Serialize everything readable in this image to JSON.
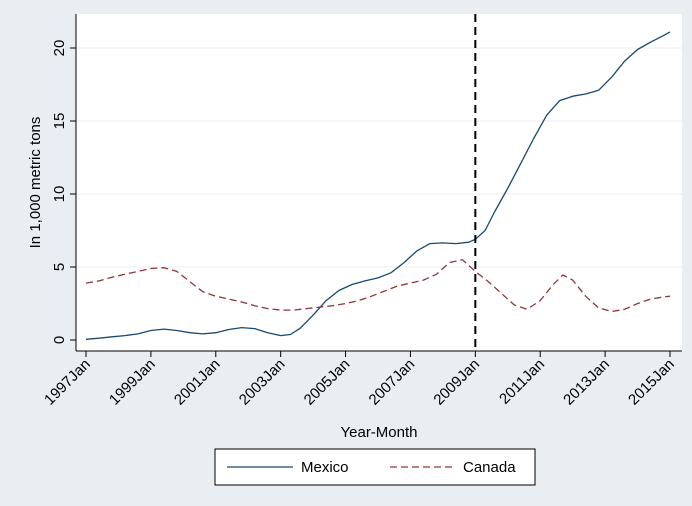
{
  "chart_data": {
    "type": "line",
    "title": "",
    "xlabel": "Year-Month",
    "ylabel": "In 1,000 metric tons",
    "xlim": [
      1997.0,
      2015.1
    ],
    "ylim": [
      0,
      21.5
    ],
    "xticks": [
      {
        "label": "1997Jan",
        "value": 1997.0
      },
      {
        "label": "1999Jan",
        "value": 1999.0
      },
      {
        "label": "2001Jan",
        "value": 2001.0
      },
      {
        "label": "2003Jan",
        "value": 2003.0
      },
      {
        "label": "2005Jan",
        "value": 2005.0
      },
      {
        "label": "2007Jan",
        "value": 2007.0
      },
      {
        "label": "2009Jan",
        "value": 2009.0
      },
      {
        "label": "2011Jan",
        "value": 2011.0
      },
      {
        "label": "2013Jan",
        "value": 2013.0
      },
      {
        "label": "2015Jan",
        "value": 2015.0
      }
    ],
    "yticks": [
      0,
      5,
      10,
      15,
      20
    ],
    "grid": "horizontal",
    "vline": {
      "x": 2009.0,
      "style": "dashed",
      "color": "#000000"
    },
    "legend": {
      "position": "bottom-center"
    },
    "colors": {
      "outer_background": "#e8eef2",
      "plot_background": "#ffffff",
      "grid": "#e8eef2"
    },
    "series": [
      {
        "name": "Mexico",
        "color": "#1a476f",
        "style": "solid",
        "points": [
          [
            1997.0,
            0.05
          ],
          [
            1997.4,
            0.12
          ],
          [
            1997.8,
            0.22
          ],
          [
            1998.2,
            0.3
          ],
          [
            1998.6,
            0.42
          ],
          [
            1999.0,
            0.65
          ],
          [
            1999.4,
            0.75
          ],
          [
            1999.8,
            0.65
          ],
          [
            2000.2,
            0.5
          ],
          [
            2000.6,
            0.42
          ],
          [
            2001.0,
            0.5
          ],
          [
            2001.4,
            0.72
          ],
          [
            2001.8,
            0.85
          ],
          [
            2002.2,
            0.78
          ],
          [
            2002.6,
            0.5
          ],
          [
            2003.0,
            0.3
          ],
          [
            2003.3,
            0.38
          ],
          [
            2003.6,
            0.8
          ],
          [
            2004.0,
            1.7
          ],
          [
            2004.4,
            2.7
          ],
          [
            2004.8,
            3.4
          ],
          [
            2005.2,
            3.8
          ],
          [
            2005.6,
            4.05
          ],
          [
            2006.0,
            4.25
          ],
          [
            2006.4,
            4.6
          ],
          [
            2006.8,
            5.3
          ],
          [
            2007.2,
            6.1
          ],
          [
            2007.6,
            6.6
          ],
          [
            2008.0,
            6.65
          ],
          [
            2008.4,
            6.6
          ],
          [
            2008.8,
            6.7
          ],
          [
            2009.0,
            6.9
          ],
          [
            2009.3,
            7.5
          ],
          [
            2009.6,
            8.8
          ],
          [
            2010.0,
            10.4
          ],
          [
            2010.4,
            12.1
          ],
          [
            2010.8,
            13.8
          ],
          [
            2011.2,
            15.4
          ],
          [
            2011.6,
            16.4
          ],
          [
            2012.0,
            16.7
          ],
          [
            2012.4,
            16.85
          ],
          [
            2012.8,
            17.1
          ],
          [
            2013.2,
            18.0
          ],
          [
            2013.6,
            19.1
          ],
          [
            2014.0,
            19.9
          ],
          [
            2014.4,
            20.4
          ],
          [
            2014.8,
            20.85
          ],
          [
            2015.0,
            21.1
          ]
        ]
      },
      {
        "name": "Canada",
        "color": "#90353b",
        "style": "dashed",
        "points": [
          [
            1997.0,
            3.9
          ],
          [
            1997.4,
            4.05
          ],
          [
            1997.8,
            4.3
          ],
          [
            1998.2,
            4.5
          ],
          [
            1998.6,
            4.7
          ],
          [
            1999.0,
            4.9
          ],
          [
            1999.4,
            4.95
          ],
          [
            1999.8,
            4.7
          ],
          [
            2000.2,
            4.0
          ],
          [
            2000.6,
            3.3
          ],
          [
            2001.0,
            3.0
          ],
          [
            2001.4,
            2.8
          ],
          [
            2001.8,
            2.6
          ],
          [
            2002.2,
            2.35
          ],
          [
            2002.6,
            2.15
          ],
          [
            2003.0,
            2.05
          ],
          [
            2003.4,
            2.05
          ],
          [
            2003.8,
            2.15
          ],
          [
            2004.2,
            2.25
          ],
          [
            2004.6,
            2.35
          ],
          [
            2005.0,
            2.5
          ],
          [
            2005.4,
            2.7
          ],
          [
            2005.8,
            3.0
          ],
          [
            2006.2,
            3.35
          ],
          [
            2006.6,
            3.7
          ],
          [
            2007.0,
            3.9
          ],
          [
            2007.4,
            4.1
          ],
          [
            2007.8,
            4.5
          ],
          [
            2008.2,
            5.3
          ],
          [
            2008.6,
            5.5
          ],
          [
            2009.0,
            4.7
          ],
          [
            2009.4,
            4.0
          ],
          [
            2009.8,
            3.2
          ],
          [
            2010.2,
            2.4
          ],
          [
            2010.6,
            2.1
          ],
          [
            2011.0,
            2.7
          ],
          [
            2011.4,
            3.8
          ],
          [
            2011.7,
            4.45
          ],
          [
            2012.0,
            4.1
          ],
          [
            2012.4,
            3.0
          ],
          [
            2012.8,
            2.2
          ],
          [
            2013.2,
            1.95
          ],
          [
            2013.6,
            2.1
          ],
          [
            2014.0,
            2.5
          ],
          [
            2014.4,
            2.8
          ],
          [
            2014.8,
            2.95
          ],
          [
            2015.0,
            3.0
          ]
        ]
      }
    ]
  }
}
